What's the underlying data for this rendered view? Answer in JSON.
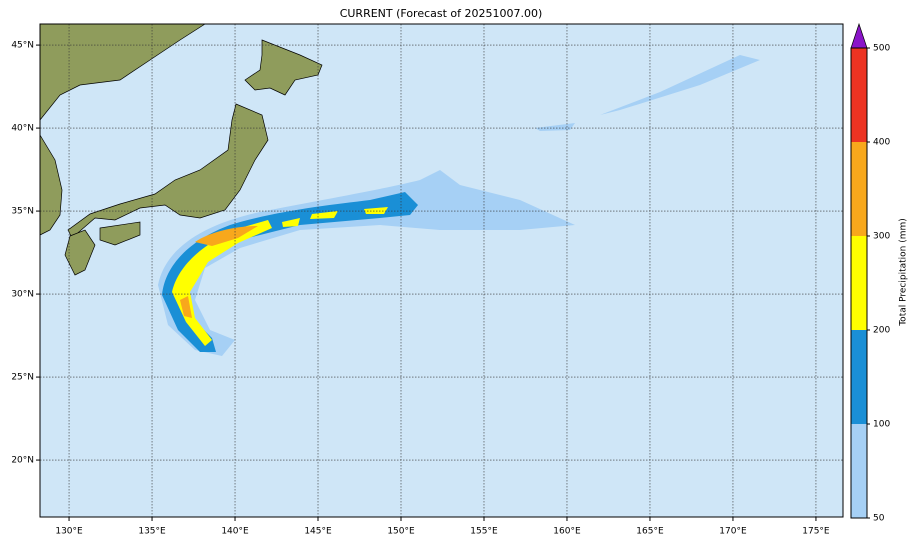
{
  "chart_data": {
    "type": "map",
    "title": "CURRENT (Forecast of 20251007.00)",
    "xlim": [
      128.25,
      176.63
    ],
    "ylim": [
      16.57,
      46.27
    ],
    "xticks": [
      {
        "value": 130,
        "label": "130°E"
      },
      {
        "value": 135,
        "label": "135°E"
      },
      {
        "value": 140,
        "label": "140°E"
      },
      {
        "value": 145,
        "label": "145°E"
      },
      {
        "value": 150,
        "label": "150°E"
      },
      {
        "value": 155,
        "label": "155°E"
      },
      {
        "value": 160,
        "label": "160°E"
      },
      {
        "value": 165,
        "label": "165°E"
      },
      {
        "value": 170,
        "label": "170°E"
      },
      {
        "value": 175,
        "label": "175°E"
      }
    ],
    "yticks": [
      {
        "value": 20,
        "label": "20°N"
      },
      {
        "value": 25,
        "label": "25°N"
      },
      {
        "value": 30,
        "label": "30°N"
      },
      {
        "value": 35,
        "label": "35°N"
      },
      {
        "value": 40,
        "label": "40°N"
      },
      {
        "value": 45,
        "label": "45°N"
      }
    ],
    "grid": true,
    "colorbar": {
      "label": "Total Precipitation (mm)",
      "ticks": [
        50,
        100,
        200,
        300,
        400,
        500
      ],
      "colors": [
        "#a6d0f5",
        "#1a8fd6",
        "#ffff00",
        "#f8a81c",
        "#ec3322"
      ],
      "extend_color": "#8a14c8"
    }
  }
}
